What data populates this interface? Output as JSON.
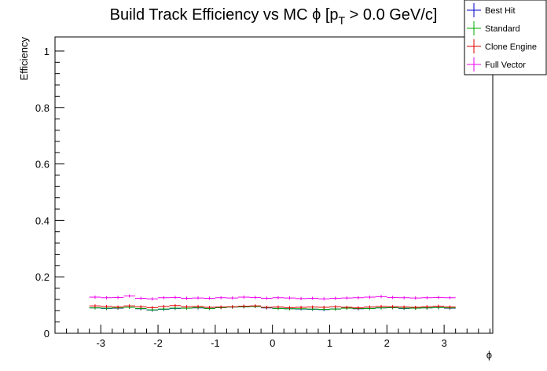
{
  "chart_data": {
    "type": "scatter",
    "title": "Build Track Efficiency vs MC ϕ [p_T > 0.0 GeV/c]",
    "title_parts": {
      "main": "Build Track Efficiency vs MC ϕ [p",
      "sub": "T",
      "tail": " > 0.0 GeV/c]"
    },
    "xlabel": "ϕ",
    "ylabel": "Efficiency",
    "xlim": [
      -3.8,
      3.85
    ],
    "ylim": [
      0,
      1.05
    ],
    "xticks": [
      -3,
      -2,
      -1,
      0,
      1,
      2,
      3
    ],
    "yticks": [
      0,
      0.2,
      0.4,
      0.6,
      0.8,
      1
    ],
    "legend_position": "top-right",
    "x": [
      -3.1,
      -2.9,
      -2.7,
      -2.5,
      -2.3,
      -2.1,
      -1.9,
      -1.7,
      -1.5,
      -1.3,
      -1.1,
      -0.9,
      -0.7,
      -0.5,
      -0.3,
      -0.1,
      0.1,
      0.3,
      0.5,
      0.7,
      0.9,
      1.1,
      1.3,
      1.5,
      1.7,
      1.9,
      2.1,
      2.3,
      2.5,
      2.7,
      2.9,
      3.1
    ],
    "series": [
      {
        "name": "Best Hit",
        "color": "#0000cc",
        "values": [
          0.09,
          0.088,
          0.089,
          0.092,
          0.087,
          0.082,
          0.085,
          0.088,
          0.089,
          0.09,
          0.088,
          0.091,
          0.093,
          0.094,
          0.095,
          0.09,
          0.088,
          0.087,
          0.086,
          0.085,
          0.084,
          0.086,
          0.089,
          0.087,
          0.088,
          0.09,
          0.091,
          0.088,
          0.089,
          0.09,
          0.091,
          0.089
        ]
      },
      {
        "name": "Standard",
        "color": "#00aa00",
        "values": [
          0.09,
          0.089,
          0.09,
          0.092,
          0.088,
          0.083,
          0.086,
          0.089,
          0.089,
          0.091,
          0.088,
          0.091,
          0.093,
          0.094,
          0.095,
          0.091,
          0.088,
          0.087,
          0.087,
          0.086,
          0.085,
          0.086,
          0.089,
          0.088,
          0.088,
          0.09,
          0.091,
          0.089,
          0.089,
          0.09,
          0.091,
          0.09
        ]
      },
      {
        "name": "Clone Engine",
        "color": "#dd0000",
        "values": [
          0.097,
          0.095,
          0.093,
          0.097,
          0.094,
          0.091,
          0.095,
          0.098,
          0.094,
          0.095,
          0.092,
          0.093,
          0.094,
          0.096,
          0.097,
          0.092,
          0.093,
          0.091,
          0.092,
          0.093,
          0.092,
          0.094,
          0.092,
          0.09,
          0.093,
          0.095,
          0.094,
          0.093,
          0.092,
          0.094,
          0.096,
          0.093
        ]
      },
      {
        "name": "Full Vector",
        "color": "#ee00ee",
        "values": [
          0.128,
          0.126,
          0.127,
          0.132,
          0.124,
          0.122,
          0.126,
          0.127,
          0.124,
          0.125,
          0.124,
          0.126,
          0.125,
          0.128,
          0.127,
          0.124,
          0.126,
          0.125,
          0.123,
          0.124,
          0.122,
          0.124,
          0.125,
          0.126,
          0.128,
          0.13,
          0.127,
          0.126,
          0.125,
          0.126,
          0.127,
          0.126
        ]
      }
    ]
  }
}
